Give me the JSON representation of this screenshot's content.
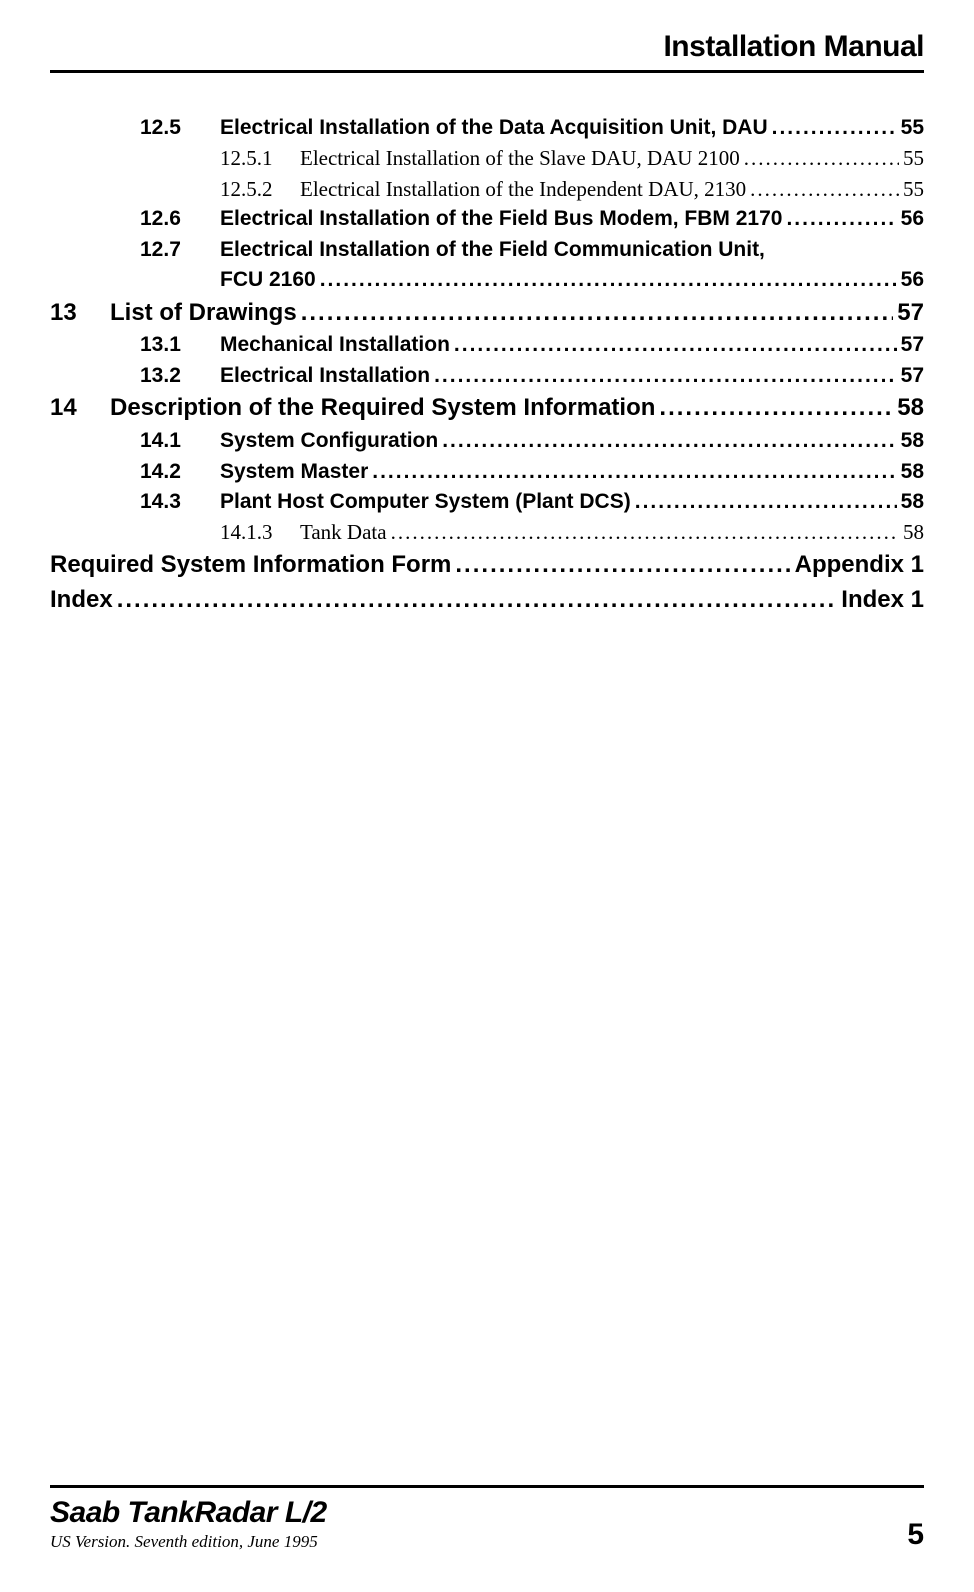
{
  "header": {
    "title": "Installation Manual"
  },
  "toc": {
    "entries": [
      {
        "level": 2,
        "num": "12.5",
        "title": "Electrical Installation of the Data Acquisition Unit, DAU",
        "page": "55"
      },
      {
        "level": 3,
        "num": "12.5.1",
        "title": "Electrical Installation of the Slave DAU, DAU 2100",
        "page": "55"
      },
      {
        "level": 3,
        "num": "12.5.2",
        "title": "Electrical Installation of the Independent DAU, 2130",
        "page": "55"
      },
      {
        "level": 2,
        "num": "12.6",
        "title": "Electrical Installation of the Field Bus Modem, FBM 2170",
        "page": "56"
      },
      {
        "level": "2wrap",
        "num": "12.7",
        "title": "Electrical Installation of the Field Communication Unit,",
        "title2": "FCU 2160",
        "page": "56"
      },
      {
        "level": 1,
        "num": "13",
        "title": "List of Drawings",
        "page": "57"
      },
      {
        "level": 2,
        "num": "13.1",
        "title": "Mechanical Installation",
        "page": "57"
      },
      {
        "level": 2,
        "num": "13.2",
        "title": "Electrical Installation",
        "page": "57"
      },
      {
        "level": 1,
        "num": "14",
        "title": "Description of the Required System Information",
        "page": "58"
      },
      {
        "level": 2,
        "num": "14.1",
        "title": "System Configuration",
        "page": "58"
      },
      {
        "level": 2,
        "num": "14.2",
        "title": "System Master",
        "page": "58"
      },
      {
        "level": 2,
        "num": "14.3",
        "title": "Plant Host Computer System (Plant DCS)",
        "page": "58"
      },
      {
        "level": 3,
        "num": "14.1.3",
        "title": "Tank Data",
        "page": "58"
      },
      {
        "level": "1a",
        "num": "",
        "title": "Required System Information Form",
        "page": "Appendix 1"
      },
      {
        "level": "1a",
        "num": "",
        "title": "Index",
        "page": "Index 1"
      }
    ]
  },
  "footer": {
    "brand": "Saab TankRadar L/2",
    "edition": "US Version. Seventh edition, June 1995",
    "page": "5"
  }
}
